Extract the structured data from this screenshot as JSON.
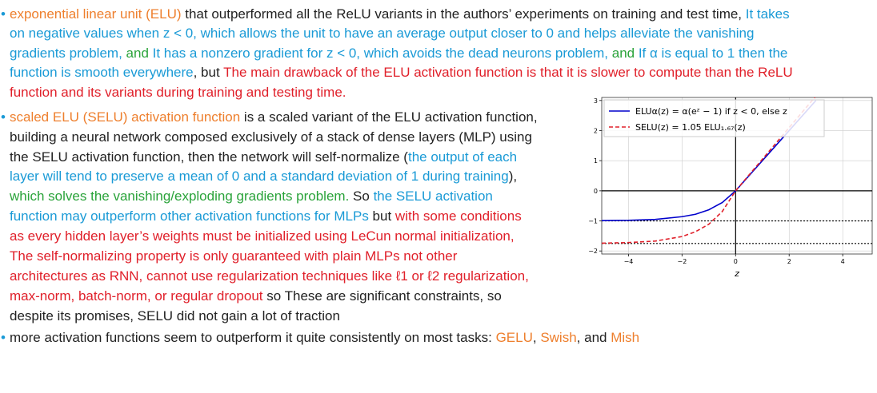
{
  "document": {
    "bullets": [
      {
        "lines": [
          [
            {
              "text": "exponential linear unit (ELU)",
              "color": "#ee7f2d"
            },
            {
              "text": " that outperformed all the ReLU variants in the authors’ experiments on training and test time, ",
              "color": "#222222"
            },
            {
              "text": "It takes",
              "color": "#1a9ad6"
            }
          ],
          [
            {
              "text": "on negative values when z < 0, which allows the unit to have an average output closer to 0 and helps alleviate the vanishing",
              "color": "#1a9ad6"
            }
          ],
          [
            {
              "text": "gradients problem,",
              "color": "#1a9ad6"
            },
            {
              "text": " and ",
              "color": "#2aa33a"
            },
            {
              "text": "It has a nonzero gradient for z < 0, which avoids the dead neurons problem,",
              "color": "#1a9ad6"
            },
            {
              "text": " and ",
              "color": "#2aa33a"
            },
            {
              "text": "If α is equal to 1 then the",
              "color": "#1a9ad6"
            }
          ],
          [
            {
              "text": "function is smooth everywhere",
              "color": "#1a9ad6"
            },
            {
              "text": ", but ",
              "color": "#222222"
            },
            {
              "text": "The main drawback of the ELU activation function is that it is slower to compute than the ReLU",
              "color": "#e0202a"
            }
          ],
          [
            {
              "text": "function and its variants during training and testing time.",
              "color": "#e0202a"
            }
          ]
        ]
      },
      {
        "lines": [
          [
            {
              "text": "scaled ELU (SELU) activation function",
              "color": "#ee7f2d"
            },
            {
              "text": " is a scaled variant of the ELU activation function,",
              "color": "#222222"
            }
          ],
          [
            {
              "text": "building a neural network composed exclusively of a stack of dense layers (MLP) using",
              "color": "#222222"
            }
          ],
          [
            {
              "text": "the SELU activation function, then the network will self-normalize (",
              "color": "#222222"
            },
            {
              "text": "the output of each",
              "color": "#1a9ad6"
            }
          ],
          [
            {
              "text": "layer will tend to preserve a mean of 0 and a standard deviation of 1 during training",
              "color": "#1a9ad6"
            },
            {
              "text": "),",
              "color": "#222222"
            }
          ],
          [
            {
              "text": "which solves the vanishing/exploding gradients problem.",
              "color": "#2aa33a"
            },
            {
              "text": " So ",
              "color": "#222222"
            },
            {
              "text": "the SELU activation",
              "color": "#1a9ad6"
            }
          ],
          [
            {
              "text": "function may outperform other activation functions for MLPs",
              "color": "#1a9ad6"
            },
            {
              "text": " but ",
              "color": "#222222"
            },
            {
              "text": "with some conditions",
              "color": "#e0202a"
            }
          ],
          [
            {
              "text": "as every hidden layer’s weights must be initialized using LeCun normal initialization,",
              "color": "#e0202a"
            }
          ],
          [
            {
              "text": "The self-normalizing property is only guaranteed with plain MLPs not other",
              "color": "#e0202a"
            }
          ],
          [
            {
              "text": "architectures as RNN, cannot use regularization techniques like ℓ1 or ℓ2 regularization,",
              "color": "#e0202a"
            }
          ],
          [
            {
              "text": "max-norm, batch-norm, or regular dropout",
              "color": "#e0202a"
            },
            {
              "text": " so These are significant constraints, so",
              "color": "#222222"
            }
          ],
          [
            {
              "text": "despite its promises, SELU did not gain a lot of traction",
              "color": "#222222"
            }
          ]
        ]
      },
      {
        "lines": [
          [
            {
              "text": "more activation functions seem to outperform it quite consistently on most tasks: ",
              "color": "#222222"
            },
            {
              "text": "GELU",
              "color": "#ee7f2d"
            },
            {
              "text": ", ",
              "color": "#222222"
            },
            {
              "text": "Swish",
              "color": "#ee7f2d"
            },
            {
              "text": ", and ",
              "color": "#222222"
            },
            {
              "text": "Mish",
              "color": "#ee7f2d"
            }
          ]
        ]
      }
    ]
  },
  "chart_data": {
    "type": "line",
    "x_label": "z",
    "x": [
      -5,
      -4,
      -3,
      -2,
      -1.5,
      -1,
      -0.5,
      0,
      1,
      2,
      3
    ],
    "series": [
      {
        "name": "ELUα(z) = α(eᶻ − 1) if z < 0, else z",
        "color": "#0000cc",
        "dash": false,
        "values": [
          -0.99,
          -0.98,
          -0.95,
          -0.86,
          -0.78,
          -0.63,
          -0.39,
          0,
          1,
          2,
          3
        ]
      },
      {
        "name": "SELU(z) = 1.05 ELU₁.₆₇(z)",
        "color": "#e0202a",
        "dash": true,
        "values": [
          -1.74,
          -1.72,
          -1.67,
          -1.52,
          -1.36,
          -1.11,
          -0.69,
          0,
          1.05,
          2.1,
          3.15
        ]
      }
    ],
    "reference_lines": [
      -1,
      -1.75
    ],
    "xlim": [
      -5,
      5.1
    ],
    "ylim": [
      -2.1,
      3.1
    ],
    "xticks": [
      {
        "value": -4,
        "label": "−4"
      },
      {
        "value": -2,
        "label": "−2"
      },
      0,
      2,
      4
    ],
    "yticks": [
      {
        "value": -2,
        "label": "−2"
      },
      {
        "value": -1,
        "label": "−1"
      },
      0,
      1,
      2,
      3
    ],
    "grid": true,
    "legend": "upper left"
  }
}
